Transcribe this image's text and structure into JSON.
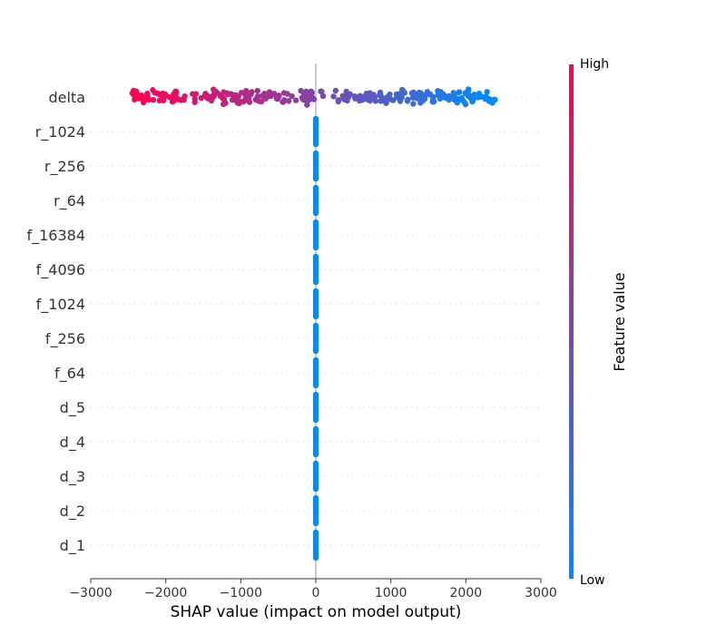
{
  "chart_data": {
    "type": "scatter",
    "subtype": "shap-beeswarm",
    "features": [
      "delta",
      "r_1024",
      "r_256",
      "r_64",
      "f_16384",
      "f_4096",
      "f_1024",
      "f_256",
      "f_64",
      "d_5",
      "d_4",
      "d_3",
      "d_2",
      "d_1"
    ],
    "xlabel": "SHAP value (impact on model output)",
    "xlim": [
      -3000,
      3000
    ],
    "xticks": [
      -3000,
      -2000,
      -1000,
      0,
      1000,
      2000,
      3000
    ],
    "xtick_labels": [
      "−3000",
      "−2000",
      "−1000",
      "0",
      "1000",
      "2000",
      "3000"
    ],
    "delta_range": [
      -2450,
      2400
    ],
    "other_features_shap_value": 0,
    "point_count_per_feature": 300,
    "colorbar": {
      "title": "Feature value",
      "high_label": "High",
      "low_label": "Low",
      "high_color": "#ff0052",
      "low_color": "#008bfb"
    },
    "colors": {
      "axis": "#333333",
      "gridline": "#cccccc",
      "zero_line": "#999999"
    }
  }
}
